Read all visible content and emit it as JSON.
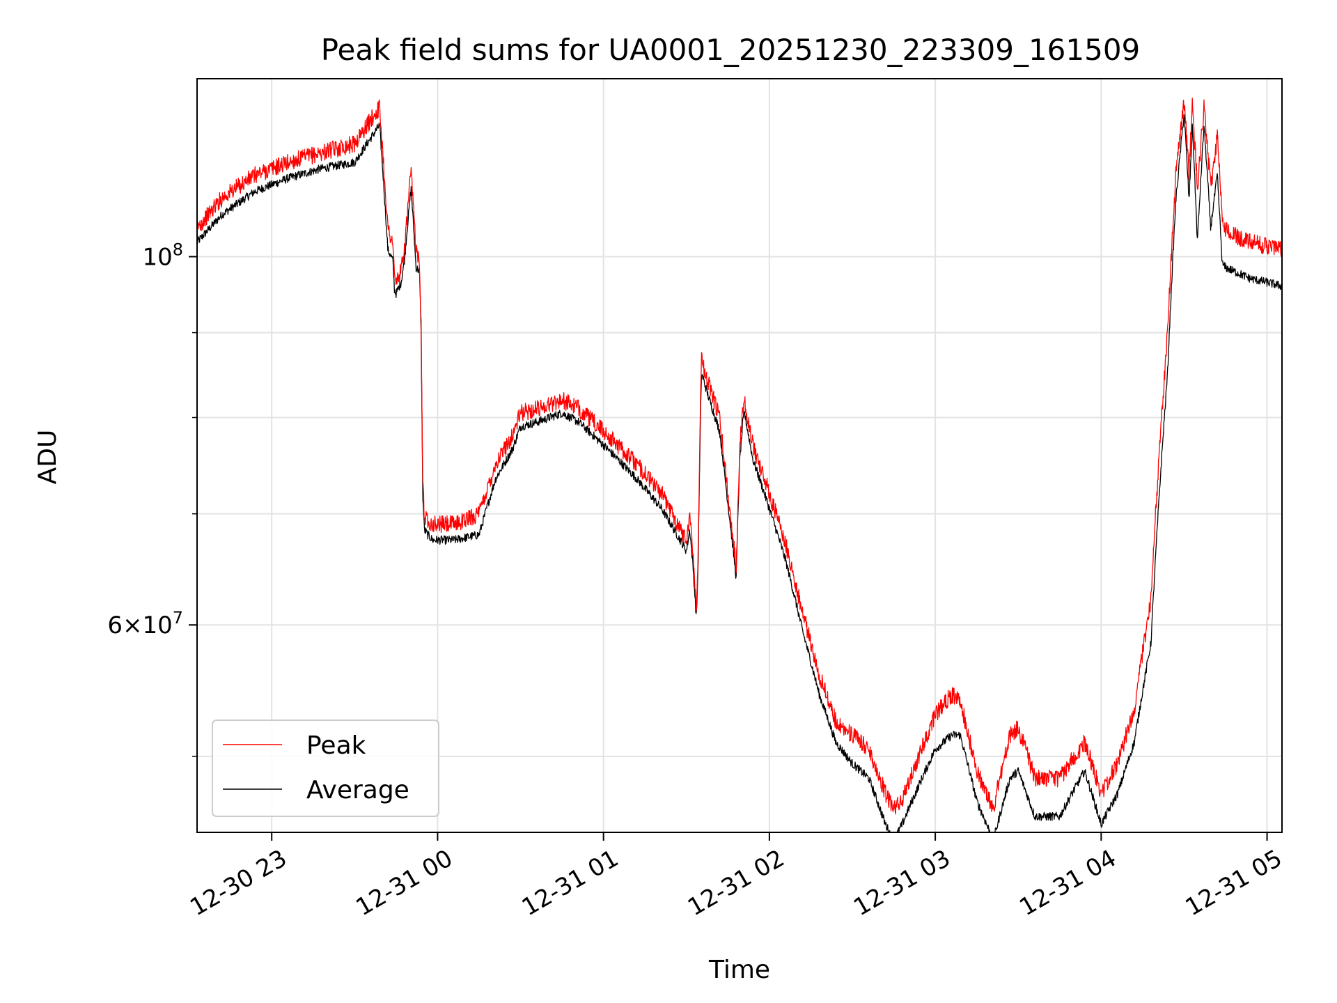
{
  "chart_data": {
    "type": "line",
    "title": "Peak field sums for UA0001_20251230_223309_161509",
    "xlabel": "Time",
    "ylabel": "ADU",
    "yscale": "log",
    "ylim": [
      45000000,
      128000000
    ],
    "xlim_hours": [
      -1.45,
      5.09
    ],
    "x_units": "hours after 12-31 00:00",
    "x_ticks": [
      {
        "value": -1,
        "label": "12-30 23"
      },
      {
        "value": 0,
        "label": "12-31 00"
      },
      {
        "value": 1,
        "label": "12-31 01"
      },
      {
        "value": 2,
        "label": "12-31 02"
      },
      {
        "value": 3,
        "label": "12-31 03"
      },
      {
        "value": 4,
        "label": "12-31 04"
      },
      {
        "value": 5,
        "label": "12-31 05"
      }
    ],
    "y_major_ticks": [
      {
        "value": 100000000,
        "base": "10",
        "exp": "8",
        "prefix": ""
      },
      {
        "value": 60000000,
        "base": "10",
        "exp": "7",
        "prefix": "6×"
      }
    ],
    "y_minor_ticks": [
      50000000,
      70000000,
      80000000,
      90000000
    ],
    "legend": {
      "position": "lower-left",
      "entries": [
        "Peak",
        "Average"
      ]
    },
    "grid": true,
    "series": [
      {
        "name": "Peak",
        "color": "#ff0000",
        "noise": 0.012,
        "x": [
          -1.45,
          -1.3,
          -1.1,
          -0.9,
          -0.7,
          -0.5,
          -0.35,
          -0.3,
          -0.27,
          -0.26,
          -0.25,
          -0.22,
          -0.2,
          -0.16,
          -0.13,
          -0.11,
          -0.1,
          -0.09,
          -0.08,
          -0.06,
          -0.03,
          0.0,
          0.1,
          0.25,
          0.35,
          0.45,
          0.5,
          0.6,
          0.75,
          0.85,
          1.0,
          1.2,
          1.35,
          1.5,
          1.52,
          1.54,
          1.56,
          1.57,
          1.59,
          1.6,
          1.63,
          1.7,
          1.75,
          1.8,
          1.82,
          1.84,
          1.85,
          1.9,
          2.0,
          2.1,
          2.2,
          2.3,
          2.4,
          2.5,
          2.6,
          2.7,
          2.75,
          2.8,
          2.9,
          3.0,
          3.1,
          3.15,
          3.25,
          3.35,
          3.45,
          3.5,
          3.6,
          3.75,
          3.9,
          4.0,
          4.1,
          4.2,
          4.3,
          4.4,
          4.45,
          4.5,
          4.53,
          4.55,
          4.58,
          4.62,
          4.66,
          4.7,
          4.73,
          4.75,
          4.8,
          4.9,
          5.0,
          5.09
        ],
        "y": [
          104000000,
          108500000,
          112000000,
          114000000,
          115500000,
          117000000,
          123000000,
          104000000,
          102000000,
          97000000,
          96500000,
          98000000,
          101000000,
          112500000,
          101000000,
          100000000,
          92000000,
          74000000,
          69500000,
          69500000,
          69000000,
          69000000,
          69000000,
          70000000,
          75000000,
          78000000,
          80500000,
          81000000,
          82000000,
          81000000,
          78500000,
          75000000,
          72000000,
          67500000,
          70000000,
          66000000,
          61500000,
          66000000,
          87000000,
          86000000,
          84000000,
          80000000,
          72000000,
          65000000,
          76500000,
          81000000,
          82000000,
          77000000,
          72000000,
          67000000,
          61000000,
          56000000,
          52500000,
          51500000,
          50500000,
          47500000,
          46500000,
          47000000,
          50000000,
          53000000,
          54500000,
          54000000,
          49000000,
          46500000,
          51500000,
          52000000,
          48500000,
          48500000,
          51000000,
          47500000,
          49500000,
          53500000,
          62000000,
          90000000,
          112000000,
          124000000,
          112000000,
          124000000,
          110000000,
          123000000,
          110000000,
          118000000,
          105000000,
          104000000,
          103000000,
          102000000,
          101500000,
          101000000
        ]
      },
      {
        "name": "Average",
        "color": "#000000",
        "noise": 0.006,
        "x": [
          -1.45,
          -1.3,
          -1.1,
          -0.9,
          -0.7,
          -0.5,
          -0.35,
          -0.3,
          -0.27,
          -0.26,
          -0.25,
          -0.22,
          -0.2,
          -0.16,
          -0.13,
          -0.11,
          -0.1,
          -0.09,
          -0.08,
          -0.06,
          -0.03,
          0.0,
          0.1,
          0.25,
          0.35,
          0.45,
          0.5,
          0.6,
          0.75,
          0.85,
          1.0,
          1.2,
          1.35,
          1.5,
          1.52,
          1.54,
          1.56,
          1.57,
          1.59,
          1.6,
          1.63,
          1.7,
          1.75,
          1.8,
          1.82,
          1.84,
          1.85,
          1.9,
          2.0,
          2.1,
          2.2,
          2.3,
          2.4,
          2.5,
          2.6,
          2.7,
          2.75,
          2.8,
          2.9,
          3.0,
          3.1,
          3.15,
          3.25,
          3.35,
          3.45,
          3.5,
          3.6,
          3.75,
          3.9,
          4.0,
          4.1,
          4.2,
          4.3,
          4.4,
          4.45,
          4.5,
          4.53,
          4.55,
          4.58,
          4.62,
          4.66,
          4.7,
          4.73,
          4.75,
          4.8,
          4.9,
          5.0,
          5.09
        ],
        "y": [
          102000000,
          106000000,
          109500000,
          111500000,
          113000000,
          114000000,
          120000000,
          101000000,
          99500000,
          95500000,
          95000000,
          96500000,
          99500000,
          110000000,
          98500000,
          98000000,
          91000000,
          72000000,
          68500000,
          68000000,
          67500000,
          67500000,
          67500000,
          68000000,
          73500000,
          76500000,
          79000000,
          79500000,
          80500000,
          79500000,
          77000000,
          73500000,
          70500000,
          66500000,
          68500000,
          65000000,
          60500000,
          65000000,
          85000000,
          84500000,
          82500000,
          78500000,
          71000000,
          64000000,
          75000000,
          79500000,
          80500000,
          75500000,
          70500000,
          65500000,
          59500000,
          54500000,
          51000000,
          49500000,
          48500000,
          45500000,
          44500000,
          45500000,
          48000000,
          50500000,
          51500000,
          51500000,
          47000000,
          44500000,
          48500000,
          49000000,
          46000000,
          46000000,
          49000000,
          45500000,
          47500000,
          51000000,
          58500000,
          85000000,
          108000000,
          122000000,
          108000000,
          120000000,
          102000000,
          120000000,
          104000000,
          112000000,
          99000000,
          98500000,
          98000000,
          97000000,
          96500000,
          96000000
        ]
      }
    ]
  }
}
